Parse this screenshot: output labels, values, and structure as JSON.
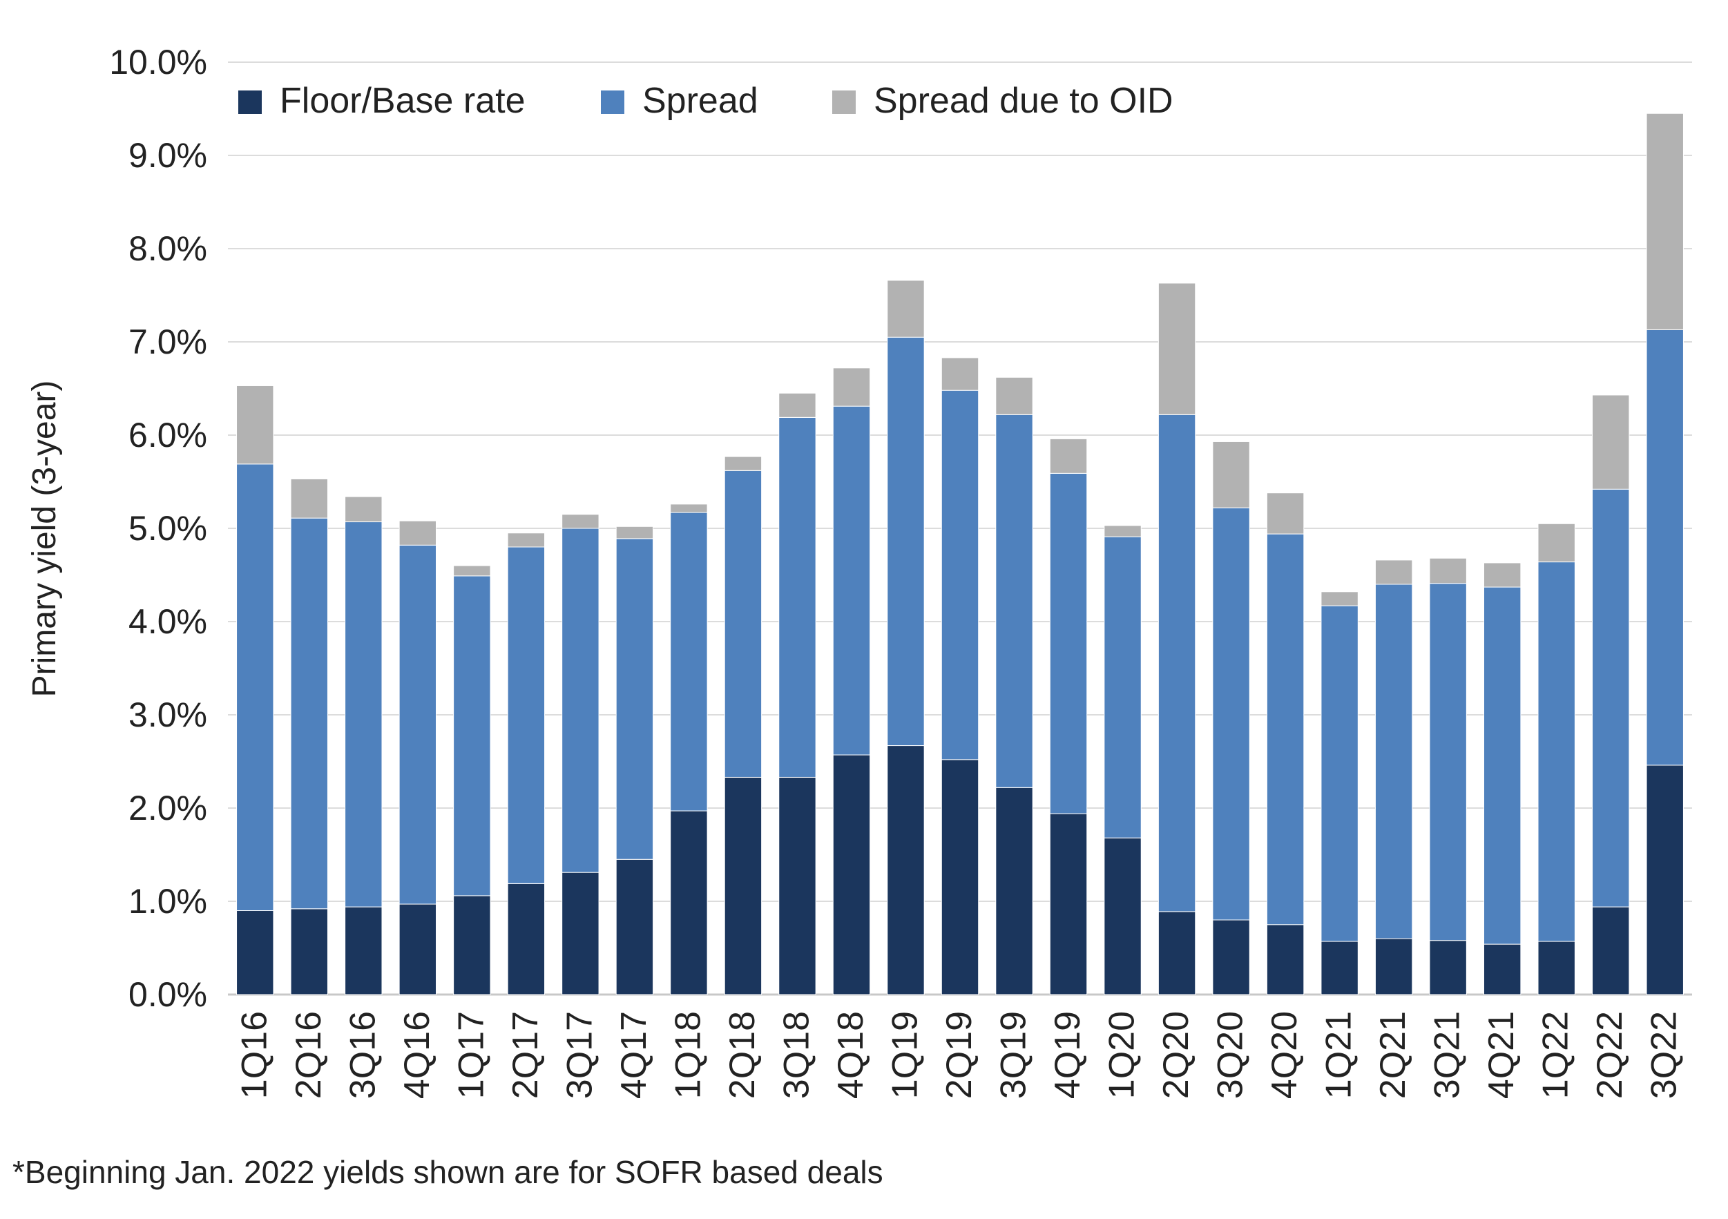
{
  "chart_data": {
    "type": "bar",
    "stacked": true,
    "ylabel": "Primary yield (3-year)",
    "ylim": [
      0,
      10
    ],
    "y_ticks": [
      "0.0%",
      "1.0%",
      "2.0%",
      "3.0%",
      "4.0%",
      "5.0%",
      "6.0%",
      "7.0%",
      "8.0%",
      "9.0%",
      "10.0%"
    ],
    "grid": true,
    "legend_position": "top-left",
    "categories": [
      "1Q16",
      "2Q16",
      "3Q16",
      "4Q16",
      "1Q17",
      "2Q17",
      "3Q17",
      "4Q17",
      "1Q18",
      "2Q18",
      "3Q18",
      "4Q18",
      "1Q19",
      "2Q19",
      "3Q19",
      "4Q19",
      "1Q20",
      "2Q20",
      "3Q20",
      "4Q20",
      "1Q21",
      "2Q21",
      "3Q21",
      "4Q21",
      "1Q22",
      "2Q22",
      "3Q22"
    ],
    "series": [
      {
        "name": "Floor/Base rate",
        "color": "#1b365d",
        "values": [
          0.9,
          0.92,
          0.94,
          0.97,
          1.06,
          1.19,
          1.31,
          1.45,
          1.97,
          2.33,
          2.33,
          2.57,
          2.67,
          2.52,
          2.22,
          1.94,
          1.68,
          0.89,
          0.8,
          0.75,
          0.57,
          0.6,
          0.58,
          0.54,
          0.57,
          0.94,
          2.46
        ]
      },
      {
        "name": "Spread",
        "color": "#4f81bd",
        "values": [
          4.79,
          4.19,
          4.13,
          3.85,
          3.43,
          3.61,
          3.69,
          3.44,
          3.2,
          3.29,
          3.86,
          3.74,
          4.38,
          3.96,
          4.0,
          3.65,
          3.23,
          5.33,
          4.42,
          4.19,
          3.6,
          3.8,
          3.83,
          3.83,
          4.07,
          4.48,
          4.67
        ]
      },
      {
        "name": "Spread due to OID",
        "color": "#b2b2b2",
        "values": [
          0.84,
          0.42,
          0.27,
          0.26,
          0.11,
          0.15,
          0.15,
          0.13,
          0.09,
          0.15,
          0.26,
          0.41,
          0.61,
          0.35,
          0.4,
          0.37,
          0.12,
          1.41,
          0.71,
          0.44,
          0.15,
          0.26,
          0.27,
          0.26,
          0.41,
          1.01,
          2.32
        ]
      }
    ],
    "footnote": "*Beginning Jan. 2022 yields shown are for SOFR based deals"
  }
}
